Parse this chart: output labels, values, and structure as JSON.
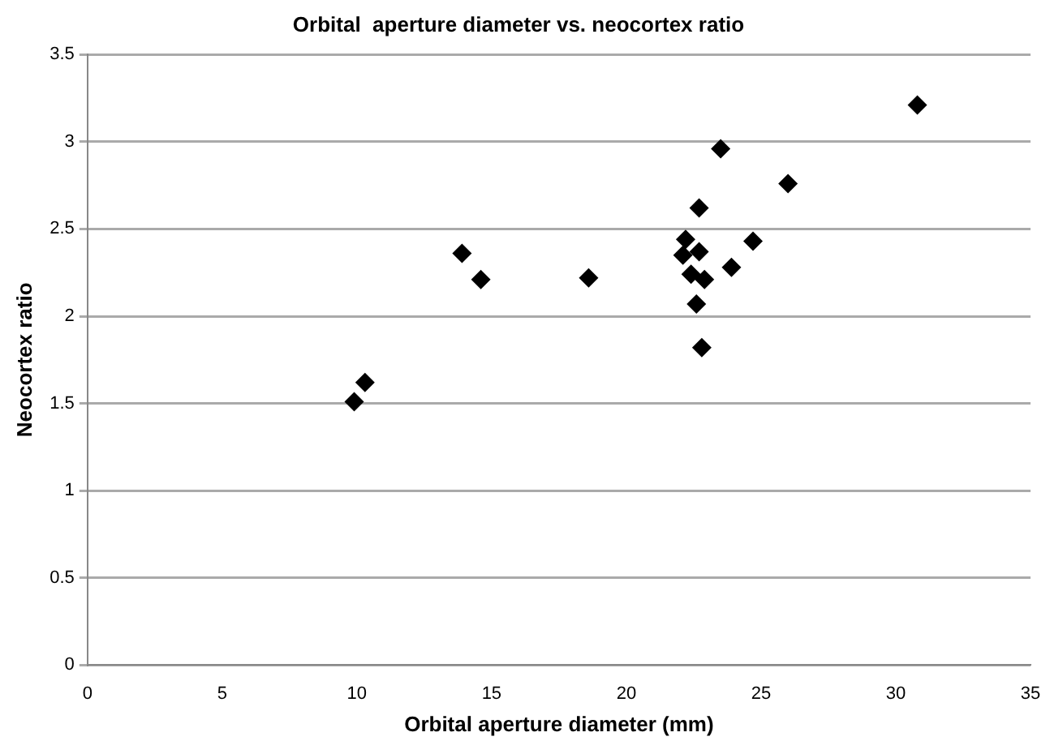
{
  "chart_data": {
    "type": "scatter",
    "title": "Orbital  aperture diameter vs. neocortex ratio",
    "xlabel": "Orbital aperture diameter (mm)",
    "ylabel": "Neocortex ratio",
    "x": [
      9.9,
      10.3,
      13.9,
      14.6,
      18.6,
      22.1,
      22.2,
      22.4,
      22.6,
      22.7,
      22.7,
      22.8,
      22.9,
      23.5,
      23.9,
      24.7,
      26.0,
      30.8
    ],
    "values": [
      1.51,
      1.62,
      2.36,
      2.21,
      2.22,
      2.35,
      2.44,
      2.24,
      2.07,
      2.37,
      2.62,
      1.82,
      2.21,
      2.96,
      2.28,
      2.43,
      2.76,
      3.21
    ],
    "color": "#000000",
    "marker": "diamond",
    "xlim": [
      0,
      35
    ],
    "xticks": [
      0,
      5,
      10,
      15,
      20,
      25,
      30,
      35
    ],
    "ylim": [
      0,
      3.5
    ],
    "yticks": [
      0,
      0.5,
      1,
      1.5,
      2,
      2.5,
      3,
      3.5
    ],
    "grid": "y",
    "legend": false
  }
}
